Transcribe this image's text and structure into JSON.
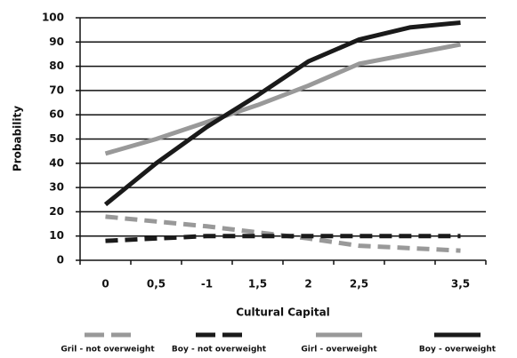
{
  "chart_data": {
    "type": "line",
    "xlabel": "Cultural Capital",
    "ylabel": "Probability",
    "categories": [
      "0",
      "0,5",
      "-1",
      "1,5",
      "2",
      "2,5",
      null,
      "3,5"
    ],
    "series": [
      {
        "name": "Gril - not overweight",
        "color": "#999999",
        "style": "dashed",
        "values": [
          18,
          16,
          14,
          11.5,
          9,
          6,
          5,
          4
        ]
      },
      {
        "name": "Boy - not overweight",
        "color": "#1a1a1a",
        "style": "dashed",
        "values": [
          8,
          9,
          10,
          10,
          10,
          10,
          10,
          10
        ]
      },
      {
        "name": "Girl - overweight",
        "color": "#999999",
        "style": "solid",
        "values": [
          44,
          50,
          57,
          64,
          72,
          81,
          85,
          89
        ]
      },
      {
        "name": "Boy - overweight",
        "color": "#1a1a1a",
        "style": "solid",
        "values": [
          23,
          40,
          55,
          68,
          82,
          91,
          96,
          98
        ]
      }
    ],
    "ylim": [
      0,
      100
    ],
    "yticks": [
      0,
      10,
      20,
      30,
      40,
      50,
      60,
      70,
      80,
      90,
      100
    ],
    "grid": true,
    "legend": "bottom"
  }
}
